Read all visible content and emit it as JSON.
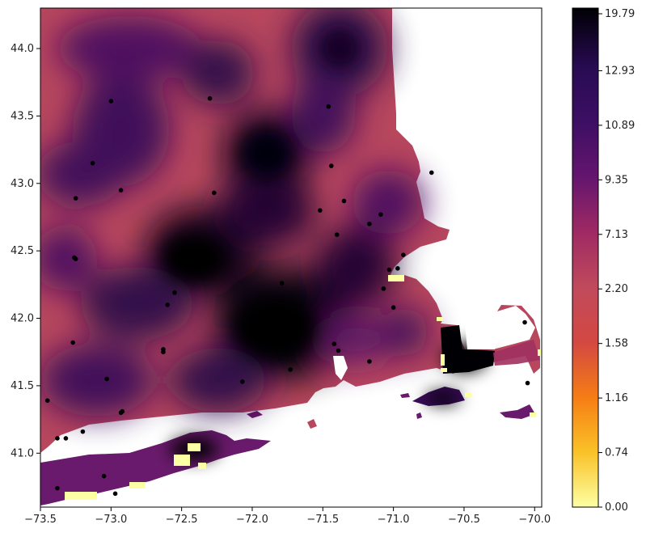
{
  "chart_data": {
    "type": "heatmap",
    "title": "",
    "xlabel": "",
    "ylabel": "",
    "xlim": [
      -73.5,
      -69.95
    ],
    "ylim": [
      40.6,
      44.3
    ],
    "x_ticks": [
      "−73.5",
      "−73.0",
      "−72.5",
      "−72.0",
      "−71.5",
      "−71.0",
      "−70.5",
      "−70.0"
    ],
    "x_tick_values": [
      -73.5,
      -73.0,
      -72.5,
      -72.0,
      -71.5,
      -71.0,
      -70.5,
      -70.0
    ],
    "y_ticks": [
      "41.0",
      "41.5",
      "42.0",
      "42.5",
      "43.0",
      "43.5",
      "44.0"
    ],
    "y_tick_values": [
      41.0,
      41.5,
      42.0,
      42.5,
      43.0,
      43.5,
      44.0
    ],
    "colormap": "inferno_r",
    "colorbar": {
      "tick_labels": [
        "0.00",
        "0.74",
        "1.16",
        "1.58",
        "2.20",
        "7.13",
        "9.35",
        "10.89",
        "12.93",
        "19.79"
      ],
      "colors": [
        "#fcffa4",
        "#fac228",
        "#f57d15",
        "#d44842",
        "#c04a5c",
        "#9f2a63",
        "#65156e",
        "#280b53",
        "#000004"
      ]
    },
    "stations": [
      [
        -73.45,
        41.39
      ],
      [
        -73.38,
        41.11
      ],
      [
        -73.32,
        41.11
      ],
      [
        -73.2,
        41.16
      ],
      [
        -73.38,
        40.74
      ],
      [
        -73.05,
        40.83
      ],
      [
        -72.97,
        40.7
      ],
      [
        -73.03,
        41.55
      ],
      [
        -72.93,
        41.3
      ],
      [
        -72.92,
        41.31
      ],
      [
        -73.27,
        41.82
      ],
      [
        -72.63,
        41.77
      ],
      [
        -72.63,
        41.75
      ],
      [
        -72.6,
        42.1
      ],
      [
        -72.55,
        42.19
      ],
      [
        -72.07,
        41.53
      ],
      [
        -71.73,
        41.62
      ],
      [
        -71.42,
        41.81
      ],
      [
        -71.39,
        41.76
      ],
      [
        -71.17,
        41.68
      ],
      [
        -71.0,
        42.08
      ],
      [
        -71.07,
        42.22
      ],
      [
        -70.97,
        42.37
      ],
      [
        -71.03,
        42.36
      ],
      [
        -70.93,
        42.47
      ],
      [
        -71.09,
        42.77
      ],
      [
        -71.17,
        42.7
      ],
      [
        -71.4,
        42.62
      ],
      [
        -71.35,
        42.87
      ],
      [
        -71.52,
        42.8
      ],
      [
        -71.44,
        43.13
      ],
      [
        -71.46,
        43.57
      ],
      [
        -72.3,
        43.63
      ],
      [
        -73.0,
        43.61
      ],
      [
        -73.13,
        43.15
      ],
      [
        -73.25,
        42.89
      ],
      [
        -72.93,
        42.95
      ],
      [
        -72.27,
        42.93
      ],
      [
        -73.26,
        42.45
      ],
      [
        -73.25,
        42.44
      ],
      [
        -71.79,
        42.26
      ],
      [
        -70.73,
        43.08
      ],
      [
        -70.07,
        41.97
      ],
      [
        -70.05,
        41.52
      ]
    ]
  }
}
